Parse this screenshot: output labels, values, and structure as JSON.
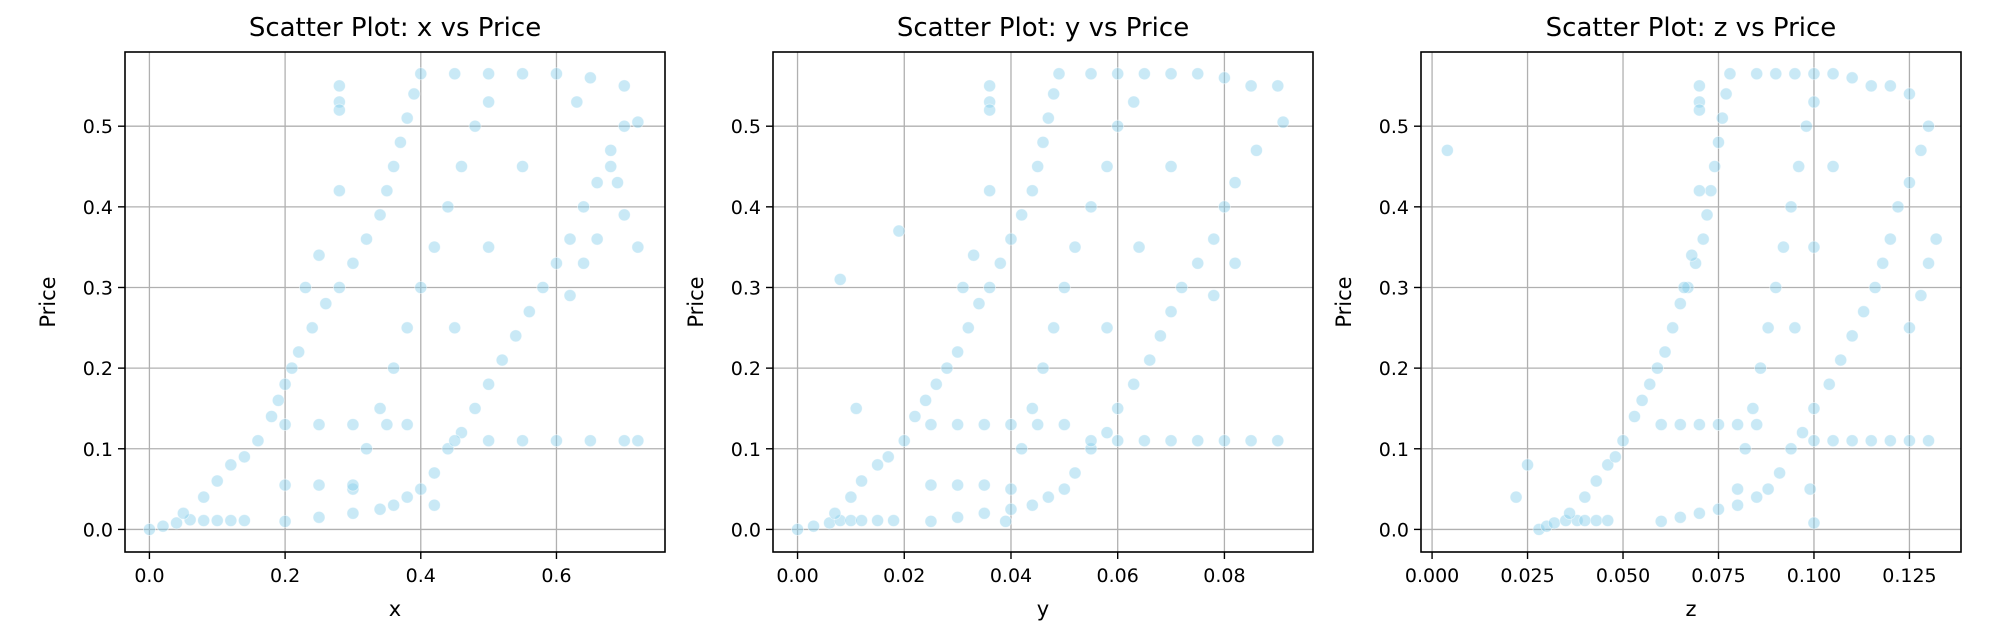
{
  "figure": {
    "background": "#ffffff",
    "point_color": "#87ceeb"
  },
  "chart_data": [
    {
      "type": "scatter",
      "title": "Scatter Plot: x vs Price",
      "xlabel": "x",
      "ylabel": "Price",
      "xlim": [
        -0.036,
        0.76
      ],
      "ylim": [
        -0.028,
        0.592
      ],
      "xticks": [
        0.0,
        0.2,
        0.4,
        0.6
      ],
      "xtick_labels": [
        "0.0",
        "0.2",
        "0.4",
        "0.6"
      ],
      "yticks": [
        0.0,
        0.1,
        0.2,
        0.3,
        0.4,
        0.5
      ],
      "ytick_labels": [
        "0.0",
        "0.1",
        "0.2",
        "0.3",
        "0.4",
        "0.5"
      ],
      "grid": true,
      "points": [
        [
          0.0,
          0.0
        ],
        [
          0.02,
          0.004
        ],
        [
          0.04,
          0.008
        ],
        [
          0.06,
          0.012
        ],
        [
          0.08,
          0.011
        ],
        [
          0.1,
          0.011
        ],
        [
          0.12,
          0.011
        ],
        [
          0.14,
          0.011
        ],
        [
          0.05,
          0.02
        ],
        [
          0.08,
          0.04
        ],
        [
          0.1,
          0.06
        ],
        [
          0.12,
          0.08
        ],
        [
          0.14,
          0.09
        ],
        [
          0.16,
          0.11
        ],
        [
          0.18,
          0.14
        ],
        [
          0.19,
          0.16
        ],
        [
          0.2,
          0.18
        ],
        [
          0.21,
          0.2
        ],
        [
          0.22,
          0.22
        ],
        [
          0.24,
          0.25
        ],
        [
          0.26,
          0.28
        ],
        [
          0.28,
          0.3
        ],
        [
          0.3,
          0.33
        ],
        [
          0.32,
          0.36
        ],
        [
          0.34,
          0.39
        ],
        [
          0.35,
          0.42
        ],
        [
          0.36,
          0.45
        ],
        [
          0.37,
          0.48
        ],
        [
          0.38,
          0.51
        ],
        [
          0.39,
          0.54
        ],
        [
          0.4,
          0.565
        ],
        [
          0.45,
          0.565
        ],
        [
          0.5,
          0.565
        ],
        [
          0.55,
          0.565
        ],
        [
          0.6,
          0.565
        ],
        [
          0.65,
          0.56
        ],
        [
          0.7,
          0.55
        ],
        [
          0.72,
          0.505
        ],
        [
          0.68,
          0.47
        ],
        [
          0.66,
          0.43
        ],
        [
          0.64,
          0.4
        ],
        [
          0.62,
          0.36
        ],
        [
          0.6,
          0.33
        ],
        [
          0.58,
          0.3
        ],
        [
          0.56,
          0.27
        ],
        [
          0.54,
          0.24
        ],
        [
          0.52,
          0.21
        ],
        [
          0.5,
          0.18
        ],
        [
          0.48,
          0.15
        ],
        [
          0.46,
          0.12
        ],
        [
          0.44,
          0.1
        ],
        [
          0.42,
          0.07
        ],
        [
          0.4,
          0.05
        ],
        [
          0.38,
          0.04
        ],
        [
          0.36,
          0.03
        ],
        [
          0.34,
          0.025
        ],
        [
          0.3,
          0.02
        ],
        [
          0.25,
          0.015
        ],
        [
          0.2,
          0.01
        ],
        [
          0.3,
          0.05
        ],
        [
          0.32,
          0.1
        ],
        [
          0.34,
          0.15
        ],
        [
          0.36,
          0.2
        ],
        [
          0.38,
          0.25
        ],
        [
          0.4,
          0.3
        ],
        [
          0.42,
          0.35
        ],
        [
          0.44,
          0.4
        ],
        [
          0.46,
          0.45
        ],
        [
          0.48,
          0.5
        ],
        [
          0.5,
          0.53
        ],
        [
          0.45,
          0.25
        ],
        [
          0.5,
          0.35
        ],
        [
          0.55,
          0.45
        ],
        [
          0.28,
          0.55
        ],
        [
          0.28,
          0.53
        ],
        [
          0.28,
          0.52
        ],
        [
          0.28,
          0.42
        ],
        [
          0.25,
          0.34
        ],
        [
          0.23,
          0.3
        ],
        [
          0.42,
          0.03
        ],
        [
          0.2,
          0.13
        ],
        [
          0.25,
          0.13
        ],
        [
          0.3,
          0.13
        ],
        [
          0.35,
          0.13
        ],
        [
          0.38,
          0.13
        ],
        [
          0.45,
          0.11
        ],
        [
          0.5,
          0.11
        ],
        [
          0.55,
          0.11
        ],
        [
          0.6,
          0.11
        ],
        [
          0.65,
          0.11
        ],
        [
          0.7,
          0.11
        ],
        [
          0.72,
          0.11
        ],
        [
          0.2,
          0.055
        ],
        [
          0.25,
          0.055
        ],
        [
          0.3,
          0.055
        ],
        [
          0.62,
          0.29
        ],
        [
          0.64,
          0.33
        ],
        [
          0.66,
          0.36
        ],
        [
          0.7,
          0.39
        ],
        [
          0.72,
          0.35
        ],
        [
          0.68,
          0.45
        ],
        [
          0.7,
          0.5
        ],
        [
          0.63,
          0.53
        ],
        [
          0.69,
          0.43
        ]
      ]
    },
    {
      "type": "scatter",
      "title": "Scatter Plot: y vs Price",
      "xlabel": "y",
      "ylabel": "Price",
      "xlim": [
        -0.0046,
        0.0966
      ],
      "ylim": [
        -0.028,
        0.592
      ],
      "xticks": [
        0.0,
        0.02,
        0.04,
        0.06,
        0.08
      ],
      "xtick_labels": [
        "0.00",
        "0.02",
        "0.04",
        "0.06",
        "0.08"
      ],
      "yticks": [
        0.0,
        0.1,
        0.2,
        0.3,
        0.4,
        0.5
      ],
      "ytick_labels": [
        "0.0",
        "0.1",
        "0.2",
        "0.3",
        "0.4",
        "0.5"
      ],
      "grid": true,
      "points": [
        [
          0.0,
          0.0
        ],
        [
          0.003,
          0.004
        ],
        [
          0.006,
          0.008
        ],
        [
          0.008,
          0.011
        ],
        [
          0.01,
          0.011
        ],
        [
          0.012,
          0.011
        ],
        [
          0.015,
          0.011
        ],
        [
          0.018,
          0.011
        ],
        [
          0.007,
          0.02
        ],
        [
          0.01,
          0.04
        ],
        [
          0.012,
          0.06
        ],
        [
          0.015,
          0.08
        ],
        [
          0.017,
          0.09
        ],
        [
          0.02,
          0.11
        ],
        [
          0.022,
          0.14
        ],
        [
          0.024,
          0.16
        ],
        [
          0.026,
          0.18
        ],
        [
          0.028,
          0.2
        ],
        [
          0.03,
          0.22
        ],
        [
          0.032,
          0.25
        ],
        [
          0.034,
          0.28
        ],
        [
          0.036,
          0.3
        ],
        [
          0.038,
          0.33
        ],
        [
          0.04,
          0.36
        ],
        [
          0.042,
          0.39
        ],
        [
          0.044,
          0.42
        ],
        [
          0.045,
          0.45
        ],
        [
          0.046,
          0.48
        ],
        [
          0.047,
          0.51
        ],
        [
          0.048,
          0.54
        ],
        [
          0.049,
          0.565
        ],
        [
          0.055,
          0.565
        ],
        [
          0.06,
          0.565
        ],
        [
          0.065,
          0.565
        ],
        [
          0.07,
          0.565
        ],
        [
          0.075,
          0.565
        ],
        [
          0.08,
          0.56
        ],
        [
          0.085,
          0.55
        ],
        [
          0.09,
          0.55
        ],
        [
          0.091,
          0.505
        ],
        [
          0.086,
          0.47
        ],
        [
          0.082,
          0.43
        ],
        [
          0.08,
          0.4
        ],
        [
          0.078,
          0.36
        ],
        [
          0.075,
          0.33
        ],
        [
          0.072,
          0.3
        ],
        [
          0.07,
          0.27
        ],
        [
          0.068,
          0.24
        ],
        [
          0.066,
          0.21
        ],
        [
          0.063,
          0.18
        ],
        [
          0.06,
          0.15
        ],
        [
          0.058,
          0.12
        ],
        [
          0.055,
          0.1
        ],
        [
          0.052,
          0.07
        ],
        [
          0.05,
          0.05
        ],
        [
          0.047,
          0.04
        ],
        [
          0.044,
          0.03
        ],
        [
          0.04,
          0.025
        ],
        [
          0.035,
          0.02
        ],
        [
          0.03,
          0.015
        ],
        [
          0.025,
          0.01
        ],
        [
          0.04,
          0.05
        ],
        [
          0.042,
          0.1
        ],
        [
          0.044,
          0.15
        ],
        [
          0.046,
          0.2
        ],
        [
          0.048,
          0.25
        ],
        [
          0.05,
          0.3
        ],
        [
          0.052,
          0.35
        ],
        [
          0.055,
          0.4
        ],
        [
          0.058,
          0.45
        ],
        [
          0.06,
          0.5
        ],
        [
          0.063,
          0.53
        ],
        [
          0.058,
          0.25
        ],
        [
          0.064,
          0.35
        ],
        [
          0.07,
          0.45
        ],
        [
          0.036,
          0.55
        ],
        [
          0.036,
          0.53
        ],
        [
          0.036,
          0.52
        ],
        [
          0.036,
          0.42
        ],
        [
          0.033,
          0.34
        ],
        [
          0.031,
          0.3
        ],
        [
          0.039,
          0.01
        ],
        [
          0.008,
          0.31
        ],
        [
          0.019,
          0.37
        ],
        [
          0.011,
          0.15
        ],
        [
          0.025,
          0.13
        ],
        [
          0.03,
          0.13
        ],
        [
          0.035,
          0.13
        ],
        [
          0.04,
          0.13
        ],
        [
          0.045,
          0.13
        ],
        [
          0.05,
          0.13
        ],
        [
          0.055,
          0.11
        ],
        [
          0.06,
          0.11
        ],
        [
          0.065,
          0.11
        ],
        [
          0.07,
          0.11
        ],
        [
          0.075,
          0.11
        ],
        [
          0.08,
          0.11
        ],
        [
          0.085,
          0.11
        ],
        [
          0.09,
          0.11
        ],
        [
          0.025,
          0.055
        ],
        [
          0.03,
          0.055
        ],
        [
          0.035,
          0.055
        ],
        [
          0.078,
          0.29
        ],
        [
          0.082,
          0.33
        ]
      ]
    },
    {
      "type": "scatter",
      "title": "Scatter Plot: z vs Price",
      "xlabel": "z",
      "ylabel": "Price",
      "xlim": [
        -0.0029,
        0.1385
      ],
      "ylim": [
        -0.028,
        0.592
      ],
      "xticks": [
        0.0,
        0.025,
        0.05,
        0.075,
        0.1,
        0.125
      ],
      "xtick_labels": [
        "0.000",
        "0.025",
        "0.050",
        "0.075",
        "0.100",
        "0.125"
      ],
      "yticks": [
        0.0,
        0.1,
        0.2,
        0.3,
        0.4,
        0.5
      ],
      "ytick_labels": [
        "0.0",
        "0.1",
        "0.2",
        "0.3",
        "0.4",
        "0.5"
      ],
      "grid": true,
      "points": [
        [
          0.004,
          0.47
        ],
        [
          0.022,
          0.04
        ],
        [
          0.025,
          0.08
        ],
        [
          0.028,
          0.0
        ],
        [
          0.03,
          0.004
        ],
        [
          0.032,
          0.008
        ],
        [
          0.035,
          0.011
        ],
        [
          0.038,
          0.011
        ],
        [
          0.04,
          0.011
        ],
        [
          0.043,
          0.011
        ],
        [
          0.046,
          0.011
        ],
        [
          0.036,
          0.02
        ],
        [
          0.04,
          0.04
        ],
        [
          0.043,
          0.06
        ],
        [
          0.046,
          0.08
        ],
        [
          0.048,
          0.09
        ],
        [
          0.05,
          0.11
        ],
        [
          0.053,
          0.14
        ],
        [
          0.055,
          0.16
        ],
        [
          0.057,
          0.18
        ],
        [
          0.059,
          0.2
        ],
        [
          0.061,
          0.22
        ],
        [
          0.063,
          0.25
        ],
        [
          0.065,
          0.28
        ],
        [
          0.067,
          0.3
        ],
        [
          0.069,
          0.33
        ],
        [
          0.071,
          0.36
        ],
        [
          0.072,
          0.39
        ],
        [
          0.073,
          0.42
        ],
        [
          0.074,
          0.45
        ],
        [
          0.075,
          0.48
        ],
        [
          0.076,
          0.51
        ],
        [
          0.077,
          0.54
        ],
        [
          0.078,
          0.565
        ],
        [
          0.085,
          0.565
        ],
        [
          0.09,
          0.565
        ],
        [
          0.095,
          0.565
        ],
        [
          0.1,
          0.565
        ],
        [
          0.105,
          0.565
        ],
        [
          0.11,
          0.56
        ],
        [
          0.115,
          0.55
        ],
        [
          0.12,
          0.55
        ],
        [
          0.125,
          0.54
        ],
        [
          0.13,
          0.5
        ],
        [
          0.128,
          0.47
        ],
        [
          0.125,
          0.43
        ],
        [
          0.122,
          0.4
        ],
        [
          0.12,
          0.36
        ],
        [
          0.118,
          0.33
        ],
        [
          0.116,
          0.3
        ],
        [
          0.113,
          0.27
        ],
        [
          0.11,
          0.24
        ],
        [
          0.107,
          0.21
        ],
        [
          0.104,
          0.18
        ],
        [
          0.1,
          0.15
        ],
        [
          0.097,
          0.12
        ],
        [
          0.094,
          0.1
        ],
        [
          0.091,
          0.07
        ],
        [
          0.088,
          0.05
        ],
        [
          0.085,
          0.04
        ],
        [
          0.08,
          0.03
        ],
        [
          0.075,
          0.025
        ],
        [
          0.07,
          0.02
        ],
        [
          0.065,
          0.015
        ],
        [
          0.06,
          0.01
        ],
        [
          0.08,
          0.05
        ],
        [
          0.082,
          0.1
        ],
        [
          0.084,
          0.15
        ],
        [
          0.086,
          0.2
        ],
        [
          0.088,
          0.25
        ],
        [
          0.09,
          0.3
        ],
        [
          0.092,
          0.35
        ],
        [
          0.094,
          0.4
        ],
        [
          0.096,
          0.45
        ],
        [
          0.098,
          0.5
        ],
        [
          0.1,
          0.53
        ],
        [
          0.095,
          0.25
        ],
        [
          0.1,
          0.35
        ],
        [
          0.105,
          0.45
        ],
        [
          0.07,
          0.55
        ],
        [
          0.07,
          0.53
        ],
        [
          0.07,
          0.52
        ],
        [
          0.07,
          0.42
        ],
        [
          0.068,
          0.34
        ],
        [
          0.066,
          0.3
        ],
        [
          0.1,
          0.008
        ],
        [
          0.099,
          0.05
        ],
        [
          0.06,
          0.13
        ],
        [
          0.065,
          0.13
        ],
        [
          0.07,
          0.13
        ],
        [
          0.075,
          0.13
        ],
        [
          0.08,
          0.13
        ],
        [
          0.085,
          0.13
        ],
        [
          0.1,
          0.11
        ],
        [
          0.105,
          0.11
        ],
        [
          0.11,
          0.11
        ],
        [
          0.115,
          0.11
        ],
        [
          0.12,
          0.11
        ],
        [
          0.125,
          0.11
        ],
        [
          0.13,
          0.11
        ],
        [
          0.128,
          0.29
        ],
        [
          0.132,
          0.36
        ],
        [
          0.13,
          0.33
        ],
        [
          0.125,
          0.25
        ]
      ]
    }
  ]
}
